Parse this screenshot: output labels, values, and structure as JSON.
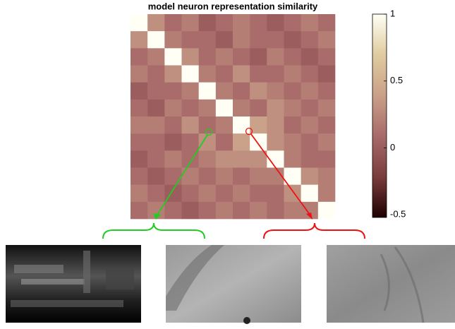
{
  "chart_data": {
    "type": "heatmap",
    "title": "model neuron representation similarity",
    "values": [
      [
        1,
        0.3,
        0.1,
        0.2,
        0,
        0.1,
        0.2,
        0.1,
        0,
        0.1,
        0.2,
        0.1
      ],
      [
        0.3,
        1,
        0.2,
        0.1,
        0.1,
        0,
        0.2,
        0.1,
        0.1,
        0,
        0.1,
        0.2
      ],
      [
        0.1,
        0.2,
        1,
        0.3,
        0.1,
        0.2,
        0.1,
        0,
        0.2,
        0.1,
        0,
        0.1
      ],
      [
        0.2,
        0.1,
        0.3,
        1,
        0.2,
        0.1,
        0.3,
        0.1,
        0.1,
        0.2,
        0.1,
        0
      ],
      [
        0,
        0.1,
        0.1,
        0.2,
        1,
        0.2,
        0.1,
        0.3,
        0.2,
        0.1,
        0.2,
        0.1
      ],
      [
        0.1,
        0,
        0.2,
        0.1,
        0.2,
        1,
        0.2,
        0.1,
        0.3,
        0.2,
        0.1,
        0.2
      ],
      [
        0.2,
        0.2,
        0.1,
        0.3,
        0.1,
        0.2,
        1,
        0.4,
        0.3,
        0.1,
        0.2,
        0.1
      ],
      [
        0.1,
        0.1,
        0,
        0.1,
        0.3,
        0.1,
        0.4,
        1,
        0.3,
        0.2,
        0.1,
        0.2
      ],
      [
        0,
        0.1,
        0.2,
        0.1,
        0.2,
        0.3,
        0.3,
        0.3,
        1,
        0.2,
        0.1,
        0.1
      ],
      [
        0.1,
        0,
        0.1,
        0.2,
        0.1,
        0.2,
        0.1,
        0.2,
        0.2,
        1,
        0.3,
        0.2
      ],
      [
        0.2,
        0.1,
        0,
        0.1,
        0.2,
        0.1,
        0.2,
        0.1,
        0.1,
        0.3,
        1,
        0.2
      ],
      [
        0.1,
        0.2,
        0.1,
        0,
        0.1,
        0.2,
        0.1,
        0.2,
        0.1,
        0.2,
        0.2,
        1
      ]
    ],
    "colormap": [
      "#1e0000",
      "#7a3d3d",
      "#a86a6a",
      "#c9a088",
      "#e0cba0",
      "#fffff5"
    ],
    "clim": [
      -0.52,
      1
    ],
    "cticks": [
      1,
      0.5,
      0,
      -0.5
    ]
  }
}
